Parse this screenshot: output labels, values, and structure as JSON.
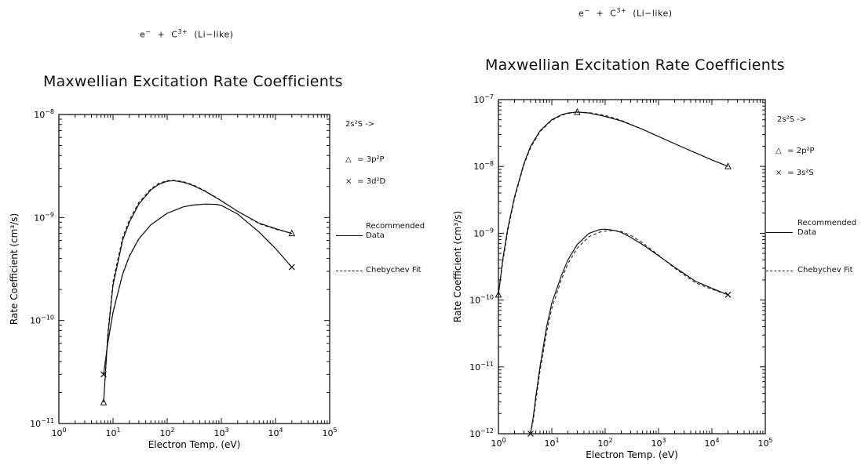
{
  "chart_data": [
    {
      "type": "line",
      "reaction": {
        "prefix": "e",
        "charge_e": "−",
        "plus": "+",
        "ion": "C",
        "charge_ion": "3+",
        "suffix": "(Li−like)"
      },
      "title": "Maxwellian Excitation Rate Coefficients",
      "xlabel": "Electron Temp. (eV)",
      "ylabel": "Rate Coefficient (cm³/s)",
      "xscale": "log",
      "yscale": "log",
      "xlim": [
        1,
        100000
      ],
      "ylim": [
        1e-11,
        1e-08
      ],
      "xticks": [
        {
          "base": "10",
          "exp": "0"
        },
        {
          "base": "10",
          "exp": "1"
        },
        {
          "base": "10",
          "exp": "2"
        },
        {
          "base": "10",
          "exp": "3"
        },
        {
          "base": "10",
          "exp": "4"
        },
        {
          "base": "10",
          "exp": "5"
        }
      ],
      "yticks": [
        {
          "base": "10",
          "exp": "−11"
        },
        {
          "base": "10",
          "exp": "−10"
        },
        {
          "base": "10",
          "exp": "−9"
        },
        {
          "base": "10",
          "exp": "−8"
        }
      ],
      "legend_header": "2s²S ->",
      "series": [
        {
          "name": "3p²P",
          "marker": "triangle",
          "x": [
            6.7,
            8,
            10,
            15,
            20,
            30,
            50,
            70,
            100,
            130,
            200,
            300,
            500,
            1000,
            2000,
            5000,
            10000,
            20000
          ],
          "recommended": [
            1.6e-11,
            7e-11,
            2.2e-10,
            6e-10,
            9e-10,
            1.35e-09,
            1.85e-09,
            2.1e-09,
            2.25e-09,
            2.28e-09,
            2.2e-09,
            2.05e-09,
            1.8e-09,
            1.45e-09,
            1.15e-09,
            8.8e-10,
            7.8e-10,
            7e-10
          ],
          "chebychev": [
            1.6e-11,
            7.5e-11,
            2.4e-10,
            6.4e-10,
            9.5e-10,
            1.4e-09,
            1.9e-09,
            2.15e-09,
            2.28e-09,
            2.3e-09,
            2.23e-09,
            2.08e-09,
            1.82e-09,
            1.46e-09,
            1.15e-09,
            8.7e-10,
            7.7e-10,
            7e-10
          ],
          "endpoints": [
            [
              6.7,
              1.6e-11
            ],
            [
              20000,
              7e-10
            ]
          ]
        },
        {
          "name": "3d²D",
          "marker": "x",
          "x": [
            6.7,
            8,
            10,
            15,
            20,
            30,
            50,
            100,
            200,
            300,
            500,
            800,
            1000,
            2000,
            5000,
            10000,
            20000
          ],
          "recommended": [
            3e-11,
            6e-11,
            1.2e-10,
            2.8e-10,
            4.2e-10,
            6.2e-10,
            8.5e-10,
            1.1e-09,
            1.27e-09,
            1.32e-09,
            1.35e-09,
            1.34e-09,
            1.31e-09,
            1.08e-09,
            7.2e-10,
            5e-10,
            3.3e-10
          ],
          "chebychev": [
            3e-11,
            6.2e-11,
            1.22e-10,
            2.85e-10,
            4.25e-10,
            6.25e-10,
            8.5e-10,
            1.1e-09,
            1.27e-09,
            1.32e-09,
            1.35e-09,
            1.34e-09,
            1.31e-09,
            1.08e-09,
            7.2e-10,
            5e-10,
            3.3e-10
          ],
          "endpoints": [
            [
              6.7,
              3e-11
            ],
            [
              20000,
              3.3e-10
            ]
          ]
        }
      ],
      "line_legend": {
        "recommended": "Recommended Data",
        "recommended_l1": "Recommended",
        "recommended_l2": "Data",
        "chebychev": "Chebychev Fit"
      }
    },
    {
      "type": "line",
      "reaction": {
        "prefix": "e",
        "charge_e": "−",
        "plus": "+",
        "ion": "C",
        "charge_ion": "3+",
        "suffix": "(Li−like)"
      },
      "title": "Maxwellian Excitation Rate Coefficients",
      "xlabel": "Electron Temp. (eV)",
      "ylabel": "Rate Coefficient (cm³/s)",
      "xscale": "log",
      "yscale": "log",
      "xlim": [
        1,
        100000
      ],
      "ylim": [
        1e-12,
        1e-07
      ],
      "xticks": [
        {
          "base": "10",
          "exp": "0"
        },
        {
          "base": "10",
          "exp": "1"
        },
        {
          "base": "10",
          "exp": "2"
        },
        {
          "base": "10",
          "exp": "3"
        },
        {
          "base": "10",
          "exp": "4"
        },
        {
          "base": "10",
          "exp": "5"
        }
      ],
      "yticks": [
        {
          "base": "10",
          "exp": "−12"
        },
        {
          "base": "10",
          "exp": "−11"
        },
        {
          "base": "10",
          "exp": "−10"
        },
        {
          "base": "10",
          "exp": "−9"
        },
        {
          "base": "10",
          "exp": "−8"
        },
        {
          "base": "10",
          "exp": "−7"
        }
      ],
      "legend_header": "2s²S ->",
      "series": [
        {
          "name": "2p²P",
          "marker": "triangle",
          "x": [
            1,
            1.2,
            1.5,
            2,
            3,
            4,
            6,
            10,
            15,
            20,
            30,
            50,
            100,
            200,
            500,
            1000,
            3000,
            10000,
            20000
          ],
          "recommended": [
            1.2e-10,
            4e-10,
            1.2e-09,
            3.5e-09,
            1.1e-08,
            2e-08,
            3.4e-08,
            5e-08,
            5.9e-08,
            6.3e-08,
            6.5e-08,
            6.3e-08,
            5.6e-08,
            4.8e-08,
            3.6e-08,
            2.8e-08,
            1.9e-08,
            1.25e-08,
            1e-08
          ],
          "chebychev": [
            1.2e-10,
            3.6e-10,
            1.1e-09,
            3.3e-09,
            1.05e-08,
            1.9e-08,
            3.3e-08,
            4.9e-08,
            5.8e-08,
            6.2e-08,
            6.5e-08,
            6.4e-08,
            5.8e-08,
            4.9e-08,
            3.6e-08,
            2.8e-08,
            1.9e-08,
            1.25e-08,
            1e-08
          ],
          "endpoints": [
            [
              1,
              1.2e-10
            ],
            [
              30,
              6.5e-08
            ],
            [
              20000,
              1e-08
            ]
          ]
        },
        {
          "name": "3s²S",
          "marker": "x",
          "x": [
            4,
            4.5,
            5,
            6,
            8,
            10,
            15,
            20,
            30,
            50,
            80,
            100,
            150,
            200,
            300,
            500,
            1000,
            2000,
            5000,
            10000,
            20000
          ],
          "recommended": [
            1e-12,
            1.8e-12,
            3.5e-12,
            1e-11,
            4e-11,
            9e-11,
            2.3e-10,
            4e-10,
            6.8e-10,
            1e-09,
            1.14e-09,
            1.15e-09,
            1.1e-09,
            1.03e-09,
            8.7e-10,
            6.8e-10,
            4.6e-10,
            3.1e-10,
            1.9e-10,
            1.5e-10,
            1.2e-10
          ],
          "chebychev": [
            1e-12,
            1.6e-12,
            3e-12,
            8.5e-12,
            3.3e-11,
            7.5e-11,
            2e-10,
            3.5e-10,
            6e-10,
            8.9e-10,
            1.04e-09,
            1.08e-09,
            1.1e-09,
            1.06e-09,
            9.3e-10,
            7.2e-10,
            4.7e-10,
            3e-10,
            1.8e-10,
            1.45e-10,
            1.2e-10
          ],
          "endpoints": [
            [
              4,
              1e-12
            ],
            [
              20000,
              1.2e-10
            ]
          ]
        }
      ],
      "line_legend": {
        "recommended": "Recommended Data",
        "recommended_l1": "Recommended",
        "recommended_l2": "Data",
        "chebychev": "Chebychev Fit"
      }
    }
  ]
}
